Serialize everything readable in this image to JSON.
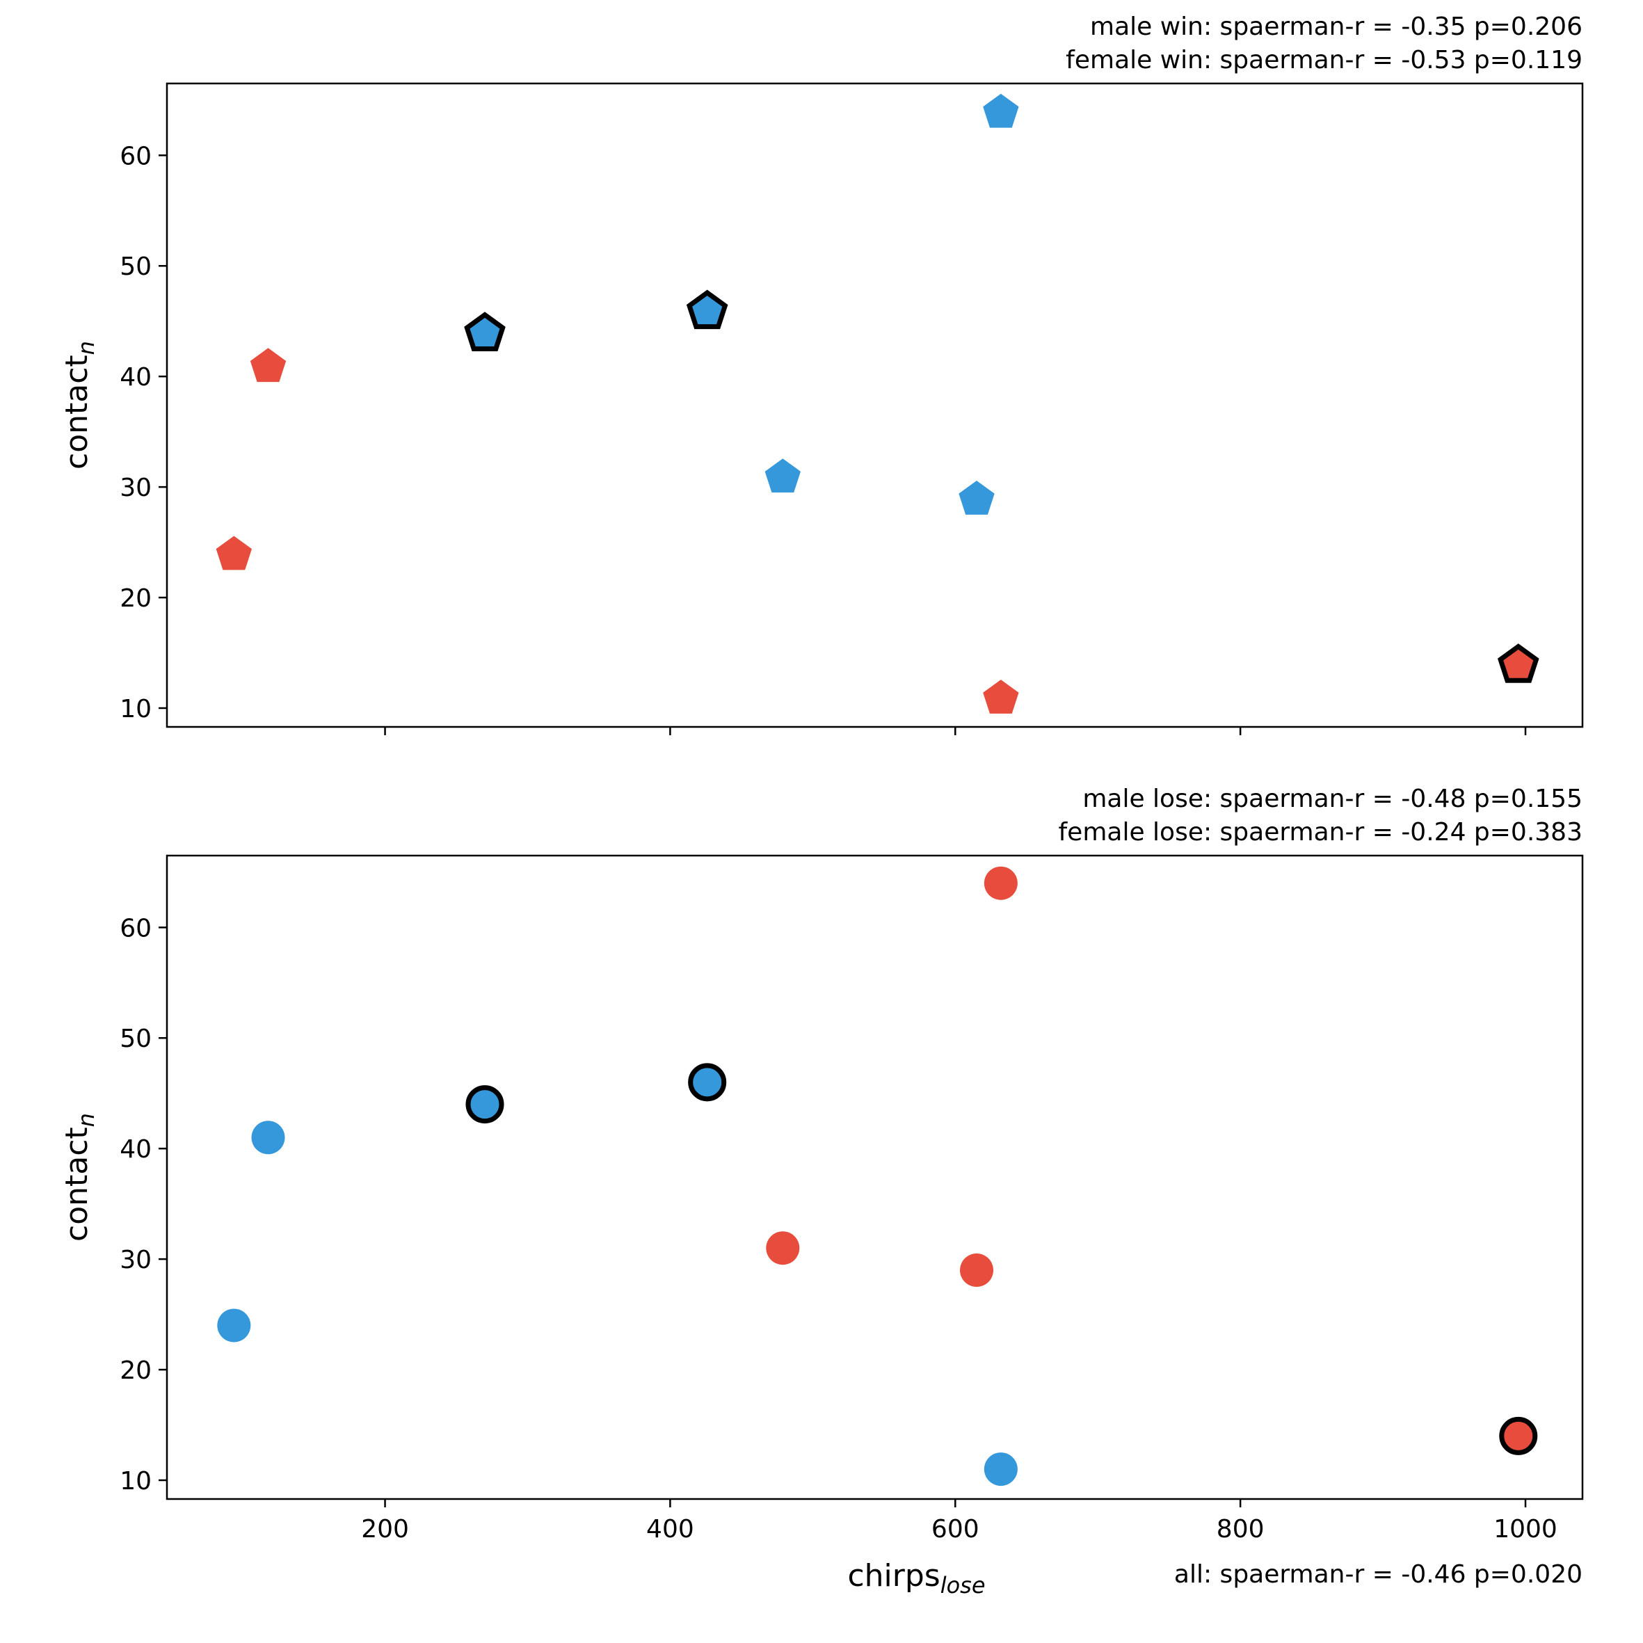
{
  "colors": {
    "male": "#3498db",
    "female": "#e74c3c",
    "highlight_edge": "#000000",
    "axes": "#000000"
  },
  "chart_data": [
    {
      "type": "scatter",
      "panel": "top",
      "marker": "pentagon",
      "xlim": [
        47,
        1040
      ],
      "ylim": [
        8.3,
        66.5
      ],
      "xticks": [
        200,
        400,
        600,
        800,
        1000
      ],
      "show_xtick_labels": false,
      "yticks": [
        10,
        20,
        30,
        40,
        50,
        60
      ],
      "ylabel": {
        "main": "contact",
        "sub": "n"
      },
      "stats": [
        "male win: spaerman-r = -0.35 p=0.206",
        "female win: spaerman-r = -0.53 p=0.119"
      ],
      "points": [
        {
          "x": 94,
          "y": 24,
          "color": "female",
          "highlight": false
        },
        {
          "x": 118,
          "y": 41,
          "color": "female",
          "highlight": false
        },
        {
          "x": 632,
          "y": 11,
          "color": "female",
          "highlight": false
        },
        {
          "x": 995,
          "y": 14,
          "color": "female",
          "highlight": true
        },
        {
          "x": 270,
          "y": 44,
          "color": "male",
          "highlight": true
        },
        {
          "x": 426,
          "y": 46,
          "color": "male",
          "highlight": true
        },
        {
          "x": 479,
          "y": 31,
          "color": "male",
          "highlight": false
        },
        {
          "x": 615,
          "y": 29,
          "color": "male",
          "highlight": false
        },
        {
          "x": 632,
          "y": 64,
          "color": "male",
          "highlight": false
        }
      ]
    },
    {
      "type": "scatter",
      "panel": "bottom",
      "marker": "circle",
      "xlim": [
        47,
        1040
      ],
      "ylim": [
        8.3,
        66.5
      ],
      "xticks": [
        200,
        400,
        600,
        800,
        1000
      ],
      "show_xtick_labels": true,
      "yticks": [
        10,
        20,
        30,
        40,
        50,
        60
      ],
      "ylabel": {
        "main": "contact",
        "sub": "n"
      },
      "xlabel": {
        "main": "chirps",
        "sub": "lose"
      },
      "stats": [
        "male lose: spaerman-r = -0.48 p=0.155",
        "female lose: spaerman-r = -0.24 p=0.383"
      ],
      "footer_stat": "all: spaerman-r = -0.46 p=0.020",
      "points": [
        {
          "x": 94,
          "y": 24,
          "color": "male",
          "highlight": false
        },
        {
          "x": 118,
          "y": 41,
          "color": "male",
          "highlight": false
        },
        {
          "x": 632,
          "y": 11,
          "color": "male",
          "highlight": false
        },
        {
          "x": 270,
          "y": 44,
          "color": "male",
          "highlight": true
        },
        {
          "x": 426,
          "y": 46,
          "color": "male",
          "highlight": true
        },
        {
          "x": 479,
          "y": 31,
          "color": "female",
          "highlight": false
        },
        {
          "x": 615,
          "y": 29,
          "color": "female",
          "highlight": false
        },
        {
          "x": 632,
          "y": 64,
          "color": "female",
          "highlight": false
        },
        {
          "x": 995,
          "y": 14,
          "color": "female",
          "highlight": true
        }
      ]
    }
  ]
}
